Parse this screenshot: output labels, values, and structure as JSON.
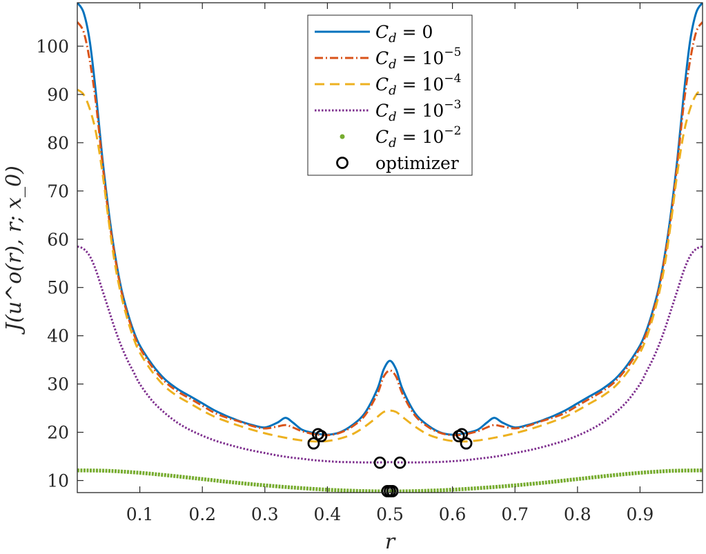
{
  "chart_data": {
    "type": "line",
    "xlabel": "r",
    "ylabel": "J(u^o(r), r; x_0)",
    "xlim": [
      0,
      1
    ],
    "ylim": [
      7.5,
      109
    ],
    "xticks": [
      0.1,
      0.2,
      0.3,
      0.4,
      0.5,
      0.6,
      0.7,
      0.8,
      0.9
    ],
    "xtick_labels": [
      "0.1",
      "0.2",
      "0.3",
      "0.4",
      "0.5",
      "0.6",
      "0.7",
      "0.8",
      "0.9"
    ],
    "yticks": [
      10,
      20,
      30,
      40,
      50,
      60,
      70,
      80,
      90,
      100
    ],
    "ytick_labels": [
      "10",
      "20",
      "30",
      "40",
      "50",
      "60",
      "70",
      "80",
      "90",
      "100"
    ],
    "grid": false,
    "legend_position": "top-center",
    "series": [
      {
        "name": "C_d = 0",
        "legend_base": "C",
        "legend_sub": "d",
        "legend_rest": " = 0",
        "legend_sup": "",
        "color": "#0072BD",
        "style": "solid",
        "points": [
          [
            0.0,
            109
          ],
          [
            0.01,
            107
          ],
          [
            0.02,
            101
          ],
          [
            0.03,
            90
          ],
          [
            0.04,
            77
          ],
          [
            0.05,
            66
          ],
          [
            0.06,
            57
          ],
          [
            0.07,
            50
          ],
          [
            0.08,
            45
          ],
          [
            0.09,
            41
          ],
          [
            0.1,
            38
          ],
          [
            0.12,
            34
          ],
          [
            0.14,
            31
          ],
          [
            0.16,
            29
          ],
          [
            0.18,
            27.5
          ],
          [
            0.2,
            26
          ],
          [
            0.22,
            24.5
          ],
          [
            0.24,
            23.3
          ],
          [
            0.25,
            22.8
          ],
          [
            0.26,
            22.3
          ],
          [
            0.28,
            21.5
          ],
          [
            0.3,
            21
          ],
          [
            0.32,
            22
          ],
          [
            0.333,
            23
          ],
          [
            0.345,
            22
          ],
          [
            0.36,
            20.5
          ],
          [
            0.38,
            19.8
          ],
          [
            0.4,
            19.5
          ],
          [
            0.42,
            20
          ],
          [
            0.44,
            21.5
          ],
          [
            0.46,
            24
          ],
          [
            0.48,
            29
          ],
          [
            0.49,
            33
          ],
          [
            0.5,
            34.8
          ],
          [
            0.51,
            33
          ],
          [
            0.52,
            29
          ],
          [
            0.54,
            24
          ],
          [
            0.56,
            21.5
          ],
          [
            0.58,
            20
          ],
          [
            0.6,
            19.5
          ],
          [
            0.62,
            19.8
          ],
          [
            0.64,
            20.5
          ],
          [
            0.655,
            22
          ],
          [
            0.667,
            23
          ],
          [
            0.68,
            22
          ],
          [
            0.7,
            21
          ],
          [
            0.72,
            21.5
          ],
          [
            0.74,
            22.3
          ],
          [
            0.75,
            22.8
          ],
          [
            0.76,
            23.3
          ],
          [
            0.78,
            24.5
          ],
          [
            0.8,
            26
          ],
          [
            0.82,
            27.5
          ],
          [
            0.84,
            29
          ],
          [
            0.86,
            31
          ],
          [
            0.88,
            34
          ],
          [
            0.9,
            38
          ],
          [
            0.91,
            41
          ],
          [
            0.92,
            45
          ],
          [
            0.93,
            50
          ],
          [
            0.94,
            57
          ],
          [
            0.95,
            66
          ],
          [
            0.96,
            77
          ],
          [
            0.97,
            90
          ],
          [
            0.98,
            101
          ],
          [
            0.99,
            107
          ],
          [
            1.0,
            109
          ]
        ]
      },
      {
        "name": "C_d = 10^-5",
        "legend_base": "C",
        "legend_sub": "d",
        "legend_rest": " = 10",
        "legend_sup": "−5",
        "color": "#D95319",
        "style": "dashdot",
        "points": [
          [
            0.0,
            105
          ],
          [
            0.01,
            103
          ],
          [
            0.02,
            97
          ],
          [
            0.03,
            88
          ],
          [
            0.04,
            76
          ],
          [
            0.05,
            65
          ],
          [
            0.06,
            56.5
          ],
          [
            0.07,
            49.5
          ],
          [
            0.08,
            44.5
          ],
          [
            0.09,
            40.5
          ],
          [
            0.1,
            37.5
          ],
          [
            0.12,
            33.5
          ],
          [
            0.14,
            30.5
          ],
          [
            0.16,
            28.5
          ],
          [
            0.18,
            27
          ],
          [
            0.2,
            25.5
          ],
          [
            0.22,
            24
          ],
          [
            0.24,
            23
          ],
          [
            0.26,
            22.2
          ],
          [
            0.28,
            21.3
          ],
          [
            0.3,
            20.8
          ],
          [
            0.32,
            21.2
          ],
          [
            0.333,
            21.5
          ],
          [
            0.345,
            21
          ],
          [
            0.36,
            20.2
          ],
          [
            0.38,
            19.6
          ],
          [
            0.4,
            19.4
          ],
          [
            0.42,
            19.9
          ],
          [
            0.44,
            21.2
          ],
          [
            0.46,
            23.5
          ],
          [
            0.48,
            28
          ],
          [
            0.49,
            31.5
          ],
          [
            0.5,
            32.8
          ],
          [
            0.51,
            31.5
          ],
          [
            0.52,
            28
          ],
          [
            0.54,
            23.5
          ],
          [
            0.56,
            21.2
          ],
          [
            0.58,
            19.9
          ],
          [
            0.6,
            19.4
          ],
          [
            0.62,
            19.6
          ],
          [
            0.64,
            20.2
          ],
          [
            0.655,
            21
          ],
          [
            0.667,
            21.5
          ],
          [
            0.68,
            21.2
          ],
          [
            0.7,
            20.8
          ],
          [
            0.72,
            21.3
          ],
          [
            0.74,
            22.2
          ],
          [
            0.76,
            23
          ],
          [
            0.78,
            24
          ],
          [
            0.8,
            25.5
          ],
          [
            0.82,
            27
          ],
          [
            0.84,
            28.5
          ],
          [
            0.86,
            30.5
          ],
          [
            0.88,
            33.5
          ],
          [
            0.9,
            37.5
          ],
          [
            0.91,
            40.5
          ],
          [
            0.92,
            44.5
          ],
          [
            0.93,
            49.5
          ],
          [
            0.94,
            56.5
          ],
          [
            0.95,
            65
          ],
          [
            0.96,
            76
          ],
          [
            0.97,
            88
          ],
          [
            0.98,
            97
          ],
          [
            0.99,
            103
          ],
          [
            1.0,
            105
          ]
        ]
      },
      {
        "name": "C_d = 10^-4",
        "legend_base": "C",
        "legend_sub": "d",
        "legend_rest": " = 10",
        "legend_sup": "−4",
        "color": "#EDB120",
        "style": "dashed",
        "points": [
          [
            0.0,
            91
          ],
          [
            0.01,
            90
          ],
          [
            0.02,
            87
          ],
          [
            0.03,
            82
          ],
          [
            0.04,
            74
          ],
          [
            0.05,
            64
          ],
          [
            0.06,
            55
          ],
          [
            0.07,
            48.5
          ],
          [
            0.08,
            43.5
          ],
          [
            0.09,
            39.5
          ],
          [
            0.1,
            36.5
          ],
          [
            0.12,
            32.5
          ],
          [
            0.14,
            29.5
          ],
          [
            0.16,
            27.5
          ],
          [
            0.18,
            26
          ],
          [
            0.2,
            24.5
          ],
          [
            0.22,
            23.2
          ],
          [
            0.24,
            22.2
          ],
          [
            0.26,
            21.3
          ],
          [
            0.28,
            20.5
          ],
          [
            0.3,
            19.8
          ],
          [
            0.32,
            19.2
          ],
          [
            0.34,
            18.7
          ],
          [
            0.36,
            18.3
          ],
          [
            0.38,
            18.1
          ],
          [
            0.4,
            18.2
          ],
          [
            0.42,
            18.7
          ],
          [
            0.44,
            19.6
          ],
          [
            0.46,
            21.2
          ],
          [
            0.48,
            23.2
          ],
          [
            0.49,
            24.2
          ],
          [
            0.5,
            24.5
          ],
          [
            0.51,
            24.2
          ],
          [
            0.52,
            23.2
          ],
          [
            0.54,
            21.2
          ],
          [
            0.56,
            19.6
          ],
          [
            0.58,
            18.7
          ],
          [
            0.6,
            18.2
          ],
          [
            0.62,
            18.1
          ],
          [
            0.64,
            18.3
          ],
          [
            0.66,
            18.7
          ],
          [
            0.68,
            19.2
          ],
          [
            0.7,
            19.8
          ],
          [
            0.72,
            20.5
          ],
          [
            0.74,
            21.3
          ],
          [
            0.76,
            22.2
          ],
          [
            0.78,
            23.2
          ],
          [
            0.8,
            24.5
          ],
          [
            0.82,
            26
          ],
          [
            0.84,
            27.5
          ],
          [
            0.86,
            29.5
          ],
          [
            0.88,
            32.5
          ],
          [
            0.9,
            36.5
          ],
          [
            0.91,
            39.5
          ],
          [
            0.92,
            43.5
          ],
          [
            0.93,
            48.5
          ],
          [
            0.94,
            55
          ],
          [
            0.95,
            64
          ],
          [
            0.96,
            74
          ],
          [
            0.97,
            82
          ],
          [
            0.98,
            87
          ],
          [
            0.99,
            90
          ],
          [
            1.0,
            91
          ]
        ]
      },
      {
        "name": "C_d = 10^-3",
        "legend_base": "C",
        "legend_sub": "d",
        "legend_rest": " = 10",
        "legend_sup": "−3",
        "color": "#7E2F8E",
        "style": "dotted",
        "points": [
          [
            0.0,
            58.5
          ],
          [
            0.01,
            58
          ],
          [
            0.02,
            56.5
          ],
          [
            0.03,
            53.5
          ],
          [
            0.04,
            49.5
          ],
          [
            0.05,
            45.5
          ],
          [
            0.06,
            41.5
          ],
          [
            0.07,
            38
          ],
          [
            0.08,
            35
          ],
          [
            0.09,
            32.5
          ],
          [
            0.1,
            30
          ],
          [
            0.12,
            26.5
          ],
          [
            0.14,
            24
          ],
          [
            0.16,
            22
          ],
          [
            0.18,
            20.5
          ],
          [
            0.2,
            19.3
          ],
          [
            0.22,
            18.3
          ],
          [
            0.24,
            17.5
          ],
          [
            0.26,
            16.8
          ],
          [
            0.28,
            16.2
          ],
          [
            0.3,
            15.7
          ],
          [
            0.32,
            15.2
          ],
          [
            0.34,
            14.8
          ],
          [
            0.36,
            14.5
          ],
          [
            0.38,
            14.2
          ],
          [
            0.4,
            14
          ],
          [
            0.42,
            13.85
          ],
          [
            0.44,
            13.8
          ],
          [
            0.46,
            13.75
          ],
          [
            0.48,
            13.75
          ],
          [
            0.5,
            13.8
          ],
          [
            0.52,
            13.75
          ],
          [
            0.54,
            13.75
          ],
          [
            0.56,
            13.8
          ],
          [
            0.58,
            13.85
          ],
          [
            0.6,
            14
          ],
          [
            0.62,
            14.2
          ],
          [
            0.64,
            14.5
          ],
          [
            0.66,
            14.8
          ],
          [
            0.68,
            15.2
          ],
          [
            0.7,
            15.7
          ],
          [
            0.72,
            16.2
          ],
          [
            0.74,
            16.8
          ],
          [
            0.76,
            17.5
          ],
          [
            0.78,
            18.3
          ],
          [
            0.8,
            19.3
          ],
          [
            0.82,
            20.5
          ],
          [
            0.84,
            22
          ],
          [
            0.86,
            24
          ],
          [
            0.88,
            26.5
          ],
          [
            0.9,
            30
          ],
          [
            0.91,
            32.5
          ],
          [
            0.92,
            35
          ],
          [
            0.93,
            38
          ],
          [
            0.94,
            41.5
          ],
          [
            0.95,
            45.5
          ],
          [
            0.96,
            49.5
          ],
          [
            0.97,
            53.5
          ],
          [
            0.98,
            56.5
          ],
          [
            0.99,
            58
          ],
          [
            1.0,
            58.5
          ]
        ]
      },
      {
        "name": "C_d = 10^-2",
        "legend_base": "C",
        "legend_sub": "d",
        "legend_rest": " = 10",
        "legend_sup": "−2",
        "color": "#77AC30",
        "style": "points",
        "points": [
          [
            0.0,
            12.1
          ],
          [
            0.05,
            12
          ],
          [
            0.1,
            11.6
          ],
          [
            0.15,
            11
          ],
          [
            0.2,
            10.3
          ],
          [
            0.25,
            9.6
          ],
          [
            0.3,
            9
          ],
          [
            0.35,
            8.5
          ],
          [
            0.4,
            8.1
          ],
          [
            0.45,
            7.85
          ],
          [
            0.5,
            7.75
          ],
          [
            0.55,
            7.85
          ],
          [
            0.6,
            8.1
          ],
          [
            0.65,
            8.5
          ],
          [
            0.7,
            9
          ],
          [
            0.75,
            9.6
          ],
          [
            0.8,
            10.3
          ],
          [
            0.85,
            11
          ],
          [
            0.9,
            11.6
          ],
          [
            0.95,
            12
          ],
          [
            1.0,
            12.1
          ]
        ]
      }
    ],
    "optimizer": {
      "name": "optimizer",
      "color": "#000000",
      "points": [
        [
          0.378,
          17.7
        ],
        [
          0.385,
          19.6
        ],
        [
          0.39,
          19.2
        ],
        [
          0.61,
          19.2
        ],
        [
          0.615,
          19.6
        ],
        [
          0.622,
          17.7
        ],
        [
          0.484,
          13.7
        ],
        [
          0.516,
          13.7
        ],
        [
          0.496,
          7.8
        ],
        [
          0.5,
          7.8
        ],
        [
          0.504,
          7.8
        ]
      ]
    }
  }
}
